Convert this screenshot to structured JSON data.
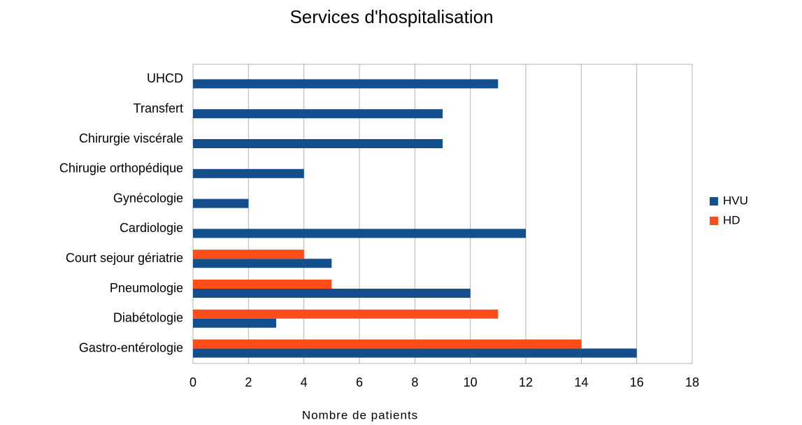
{
  "chart_data": {
    "type": "barh",
    "title": "Services d'hospitalisation",
    "xlabel": "Nombre de patients",
    "categories": [
      "Gastro-entérologie",
      "Diabétologie",
      "Pneumologie",
      "Court sejour gériatrie",
      "Cardiologie",
      "Gynécologie",
      "Chirugie orthopédique",
      "Chirurgie viscérale",
      "Transfert",
      "UHCD"
    ],
    "series": [
      {
        "name": "HVU",
        "color": "#134f8c",
        "values": [
          16,
          3,
          10,
          5,
          12,
          2,
          4,
          9,
          9,
          11
        ]
      },
      {
        "name": "HD",
        "color": "#ff4d1a",
        "values": [
          14,
          11,
          5,
          4,
          null,
          null,
          null,
          null,
          null,
          null
        ]
      }
    ],
    "xlim": [
      0,
      18
    ],
    "xticks": [
      0,
      2,
      4,
      6,
      8,
      10,
      12,
      14,
      16,
      18
    ],
    "grid": true,
    "legend": "right"
  }
}
